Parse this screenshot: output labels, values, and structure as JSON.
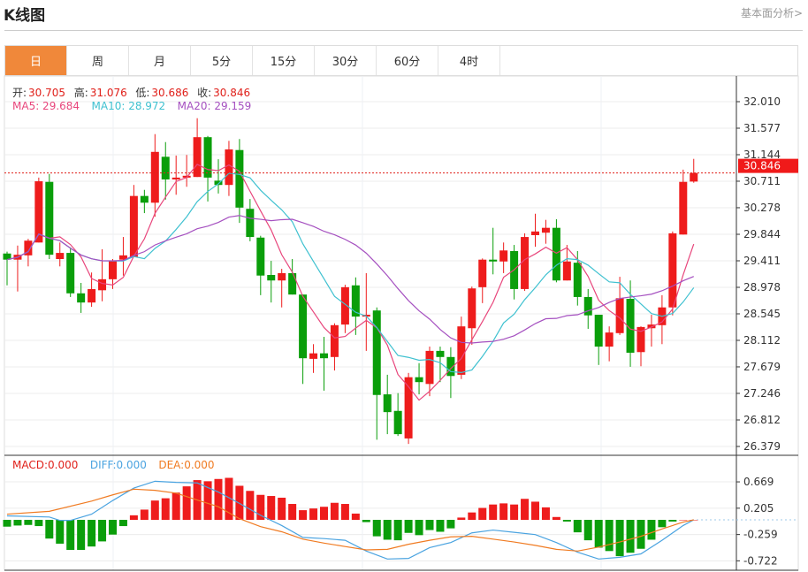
{
  "header": {
    "title": "K线图",
    "link": "基本面分析>"
  },
  "tabs": [
    {
      "label": "日",
      "active": true
    },
    {
      "label": "周"
    },
    {
      "label": "月"
    },
    {
      "label": "5分"
    },
    {
      "label": "15分"
    },
    {
      "label": "30分"
    },
    {
      "label": "60分"
    },
    {
      "label": "4时"
    }
  ],
  "ohlc_legend": {
    "open_label": "开:",
    "open": "30.705",
    "high_label": "高:",
    "high": "31.076",
    "low_label": "低:",
    "low": "30.686",
    "close_label": "收:",
    "close": "30.846"
  },
  "ma_legend": {
    "ma5": "MA5: 29.684",
    "ma10": "MA10: 28.972",
    "ma20": "MA20: 29.159"
  },
  "macd_legend": {
    "macd": "MACD:0.000",
    "diff": "DIFF:0.000",
    "dea": "DEA:0.000"
  },
  "colors": {
    "up": "#ee1c1c",
    "down": "#0a9e0a",
    "ma5": "#e8467c",
    "ma10": "#3fc1d0",
    "ma20": "#a550c0",
    "diff": "#4aa3e0",
    "dea": "#f07b22",
    "accent": "#f0883a"
  },
  "chart_data": [
    {
      "type": "candlestick",
      "price_axis_ticks": [
        "32.010",
        "31.577",
        "31.144",
        "30.711",
        "30.278",
        "29.844",
        "29.411",
        "28.978",
        "28.545",
        "28.112",
        "27.679",
        "27.246",
        "26.812",
        "26.379"
      ],
      "ylim": [
        26.379,
        32.01
      ],
      "last_price": "30.846",
      "grid": true,
      "moving_averages": [
        5,
        10,
        20
      ],
      "ohlc": [
        [
          29.53,
          29.56,
          29.01,
          29.43
        ],
        [
          29.43,
          29.66,
          28.91,
          29.51
        ],
        [
          29.5,
          29.77,
          29.32,
          29.74
        ],
        [
          29.71,
          30.77,
          29.71,
          30.71
        ],
        [
          30.7,
          30.83,
          29.44,
          29.51
        ],
        [
          29.44,
          29.71,
          29.32,
          29.54
        ],
        [
          29.54,
          29.63,
          28.82,
          28.88
        ],
        [
          28.88,
          29.05,
          28.56,
          28.73
        ],
        [
          28.73,
          29.22,
          28.66,
          28.95
        ],
        [
          28.93,
          29.6,
          28.75,
          29.11
        ],
        [
          29.11,
          29.44,
          28.95,
          29.41
        ],
        [
          29.43,
          29.8,
          29.17,
          29.5
        ],
        [
          29.47,
          30.65,
          29.47,
          30.47
        ],
        [
          30.47,
          30.57,
          30.19,
          30.36
        ],
        [
          30.36,
          31.48,
          30.13,
          31.19
        ],
        [
          31.11,
          31.35,
          30.41,
          30.74
        ],
        [
          30.74,
          31.13,
          30.49,
          30.77
        ],
        [
          30.77,
          31.14,
          30.62,
          30.8
        ],
        [
          30.78,
          31.74,
          30.78,
          31.43
        ],
        [
          31.43,
          31.45,
          30.38,
          30.77
        ],
        [
          30.72,
          31.07,
          30.51,
          30.65
        ],
        [
          30.65,
          31.37,
          30.47,
          31.23
        ],
        [
          31.22,
          31.4,
          30.03,
          30.28
        ],
        [
          30.26,
          30.42,
          29.73,
          29.8
        ],
        [
          29.79,
          29.82,
          28.85,
          29.17
        ],
        [
          29.18,
          29.41,
          28.73,
          29.09
        ],
        [
          29.09,
          29.28,
          28.65,
          29.21
        ],
        [
          29.21,
          29.44,
          28.86,
          28.86
        ],
        [
          28.86,
          28.86,
          27.4,
          27.82
        ],
        [
          27.81,
          28.05,
          27.58,
          27.9
        ],
        [
          27.9,
          28.17,
          27.29,
          27.82
        ],
        [
          27.84,
          28.39,
          27.62,
          28.36
        ],
        [
          28.37,
          29.02,
          28.23,
          28.98
        ],
        [
          29.01,
          29.14,
          28.2,
          28.5
        ],
        [
          28.5,
          29.21,
          27.94,
          28.53
        ],
        [
          28.6,
          28.65,
          26.49,
          27.22
        ],
        [
          27.23,
          27.55,
          26.58,
          26.94
        ],
        [
          26.96,
          27.25,
          26.55,
          26.58
        ],
        [
          26.51,
          27.58,
          26.42,
          27.51
        ],
        [
          27.51,
          27.74,
          27.23,
          27.43
        ],
        [
          27.4,
          28.01,
          27.2,
          27.94
        ],
        [
          27.94,
          28.01,
          27.43,
          27.84
        ],
        [
          27.84,
          28.0,
          27.17,
          27.53
        ],
        [
          27.55,
          28.5,
          27.48,
          28.34
        ],
        [
          28.31,
          28.99,
          28.04,
          28.96
        ],
        [
          28.98,
          29.45,
          28.72,
          29.43
        ],
        [
          29.43,
          29.95,
          29.19,
          29.4
        ],
        [
          29.4,
          29.71,
          29.21,
          29.58
        ],
        [
          29.57,
          29.67,
          28.78,
          28.95
        ],
        [
          28.95,
          29.86,
          28.92,
          29.8
        ],
        [
          29.83,
          30.18,
          29.64,
          29.89
        ],
        [
          29.87,
          30.08,
          29.69,
          29.95
        ],
        [
          29.95,
          30.09,
          29.06,
          29.09
        ],
        [
          29.09,
          29.67,
          29.09,
          29.4
        ],
        [
          29.38,
          29.57,
          28.68,
          28.82
        ],
        [
          28.82,
          28.95,
          28.3,
          28.52
        ],
        [
          28.53,
          28.53,
          27.71,
          28.01
        ],
        [
          28.01,
          28.34,
          27.77,
          28.24
        ],
        [
          28.23,
          29.15,
          28.2,
          28.8
        ],
        [
          28.79,
          29.09,
          27.68,
          27.91
        ],
        [
          27.92,
          28.34,
          27.69,
          28.33
        ],
        [
          28.31,
          28.53,
          28.01,
          28.37
        ],
        [
          28.36,
          28.85,
          28.05,
          28.65
        ],
        [
          28.65,
          29.89,
          28.52,
          29.86
        ],
        [
          29.84,
          30.9,
          29.84,
          30.7
        ],
        [
          30.705,
          31.076,
          30.686,
          30.846
        ]
      ]
    },
    {
      "type": "bar+line",
      "axis_ticks": [
        "0.669",
        "0.205",
        "-0.259",
        "-0.722"
      ],
      "ylim": [
        -0.8,
        0.85
      ],
      "macd_hist": [
        -0.12,
        -0.1,
        -0.09,
        -0.11,
        -0.33,
        -0.42,
        -0.53,
        -0.53,
        -0.47,
        -0.38,
        -0.26,
        -0.11,
        0.08,
        0.18,
        0.34,
        0.38,
        0.48,
        0.59,
        0.7,
        0.68,
        0.72,
        0.74,
        0.6,
        0.51,
        0.44,
        0.42,
        0.39,
        0.28,
        0.17,
        0.2,
        0.23,
        0.3,
        0.28,
        0.11,
        -0.04,
        -0.29,
        -0.35,
        -0.36,
        -0.23,
        -0.27,
        -0.18,
        -0.21,
        -0.15,
        0.04,
        0.13,
        0.21,
        0.27,
        0.29,
        0.27,
        0.37,
        0.32,
        0.22,
        0.05,
        -0.03,
        -0.22,
        -0.36,
        -0.49,
        -0.55,
        -0.64,
        -0.58,
        -0.51,
        -0.35,
        -0.13,
        -0.03,
        0.0,
        0.0
      ],
      "diff": [
        [
          0,
          0.07
        ],
        [
          4,
          0.05
        ],
        [
          5,
          -0.01
        ],
        [
          6,
          -0.01
        ],
        [
          8,
          0.1
        ],
        [
          10,
          0.34
        ],
        [
          12,
          0.56
        ],
        [
          14,
          0.68
        ],
        [
          16,
          0.66
        ],
        [
          18,
          0.65
        ],
        [
          20,
          0.49
        ],
        [
          22,
          0.29
        ],
        [
          24,
          0.08
        ],
        [
          26,
          -0.1
        ],
        [
          28,
          -0.31
        ],
        [
          30,
          -0.33
        ],
        [
          32,
          -0.36
        ],
        [
          34,
          -0.55
        ],
        [
          36,
          -0.69
        ],
        [
          38,
          -0.68
        ],
        [
          40,
          -0.49
        ],
        [
          42,
          -0.4
        ],
        [
          44,
          -0.23
        ],
        [
          46,
          -0.18
        ],
        [
          48,
          -0.22
        ],
        [
          50,
          -0.26
        ],
        [
          52,
          -0.4
        ],
        [
          54,
          -0.57
        ],
        [
          56,
          -0.69
        ],
        [
          58,
          -0.66
        ],
        [
          60,
          -0.6
        ],
        [
          62,
          -0.36
        ],
        [
          64,
          -0.1
        ],
        [
          65,
          0.0
        ]
      ],
      "dea": [
        [
          0,
          0.1
        ],
        [
          4,
          0.15
        ],
        [
          8,
          0.33
        ],
        [
          10,
          0.44
        ],
        [
          12,
          0.54
        ],
        [
          14,
          0.52
        ],
        [
          16,
          0.47
        ],
        [
          18,
          0.35
        ],
        [
          20,
          0.23
        ],
        [
          22,
          0.02
        ],
        [
          24,
          -0.12
        ],
        [
          26,
          -0.21
        ],
        [
          28,
          -0.34
        ],
        [
          30,
          -0.41
        ],
        [
          32,
          -0.47
        ],
        [
          34,
          -0.53
        ],
        [
          36,
          -0.52
        ],
        [
          38,
          -0.43
        ],
        [
          40,
          -0.36
        ],
        [
          42,
          -0.3
        ],
        [
          44,
          -0.29
        ],
        [
          46,
          -0.34
        ],
        [
          48,
          -0.39
        ],
        [
          50,
          -0.45
        ],
        [
          52,
          -0.52
        ],
        [
          54,
          -0.55
        ],
        [
          56,
          -0.48
        ],
        [
          58,
          -0.39
        ],
        [
          60,
          -0.29
        ],
        [
          62,
          -0.16
        ],
        [
          64,
          -0.04
        ],
        [
          65,
          0.0
        ]
      ]
    }
  ]
}
